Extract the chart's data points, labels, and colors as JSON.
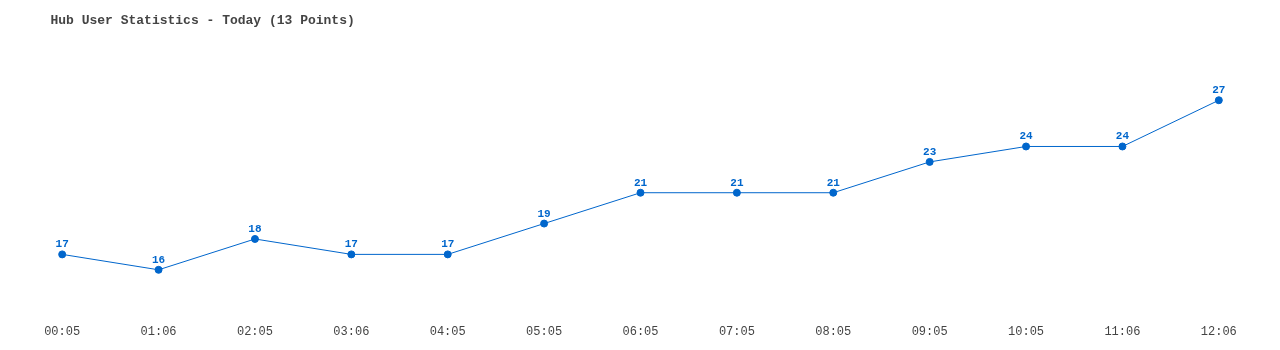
{
  "chart_data": {
    "type": "line",
    "title": "Hub User Statistics - Today (13 Points)",
    "categories": [
      "00:05",
      "01:06",
      "02:05",
      "03:06",
      "04:05",
      "05:05",
      "06:05",
      "07:05",
      "08:05",
      "09:05",
      "10:05",
      "11:06",
      "12:06"
    ],
    "series": [
      {
        "color": "#0066cc",
        "values": [
          17,
          16,
          18,
          17,
          17,
          19,
          21,
          21,
          21,
          23,
          24,
          24,
          27
        ]
      }
    ],
    "data_labels": true,
    "marker": "circle",
    "line_style": "solid"
  }
}
